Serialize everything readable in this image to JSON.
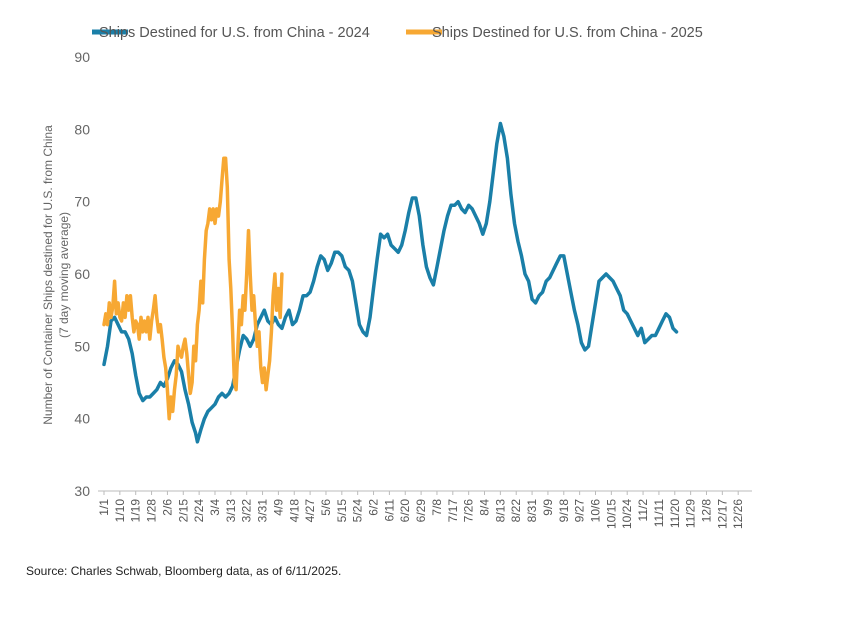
{
  "source_note": "Source: Charles Schwab, Bloomberg data, as of 6/11/2025.",
  "chart_data": {
    "type": "line",
    "title": "",
    "ylabel_line1": "Number of Container Ships destined for U.S. from China",
    "ylabel_line2": "(7 day moving average)",
    "xlabel": "",
    "ylim": [
      30,
      90
    ],
    "yticks": [
      30,
      40,
      50,
      60,
      70,
      80,
      90
    ],
    "grid": false,
    "legend_position": "top-left",
    "x_domain": [
      0,
      365
    ],
    "x_ticks": [
      {
        "label": "1/1",
        "day": 0
      },
      {
        "label": "1/10",
        "day": 9
      },
      {
        "label": "1/19",
        "day": 18
      },
      {
        "label": "1/28",
        "day": 27
      },
      {
        "label": "2/6",
        "day": 36
      },
      {
        "label": "2/15",
        "day": 45
      },
      {
        "label": "2/24",
        "day": 54
      },
      {
        "label": "3/4",
        "day": 63
      },
      {
        "label": "3/13",
        "day": 72
      },
      {
        "label": "3/22",
        "day": 81
      },
      {
        "label": "3/31",
        "day": 90
      },
      {
        "label": "4/9",
        "day": 99
      },
      {
        "label": "4/18",
        "day": 108
      },
      {
        "label": "4/27",
        "day": 117
      },
      {
        "label": "5/6",
        "day": 126
      },
      {
        "label": "5/15",
        "day": 135
      },
      {
        "label": "5/24",
        "day": 144
      },
      {
        "label": "6/2",
        "day": 153
      },
      {
        "label": "6/11",
        "day": 162
      },
      {
        "label": "6/20",
        "day": 171
      },
      {
        "label": "6/29",
        "day": 180
      },
      {
        "label": "7/8",
        "day": 189
      },
      {
        "label": "7/17",
        "day": 198
      },
      {
        "label": "7/26",
        "day": 207
      },
      {
        "label": "8/4",
        "day": 216
      },
      {
        "label": "8/13",
        "day": 225
      },
      {
        "label": "8/22",
        "day": 234
      },
      {
        "label": "8/31",
        "day": 243
      },
      {
        "label": "9/9",
        "day": 252
      },
      {
        "label": "9/18",
        "day": 261
      },
      {
        "label": "9/27",
        "day": 270
      },
      {
        "label": "10/6",
        "day": 279
      },
      {
        "label": "10/15",
        "day": 288
      },
      {
        "label": "10/24",
        "day": 297
      },
      {
        "label": "11/2",
        "day": 306
      },
      {
        "label": "11/11",
        "day": 315
      },
      {
        "label": "11/20",
        "day": 324
      },
      {
        "label": "11/29",
        "day": 333
      },
      {
        "label": "12/8",
        "day": 342
      },
      {
        "label": "12/17",
        "day": 351
      },
      {
        "label": "12/26",
        "day": 360
      }
    ],
    "series": [
      {
        "name": "Ships Destined for U.S. from China - 2024",
        "color": "#1a7fa8",
        "points": [
          [
            0,
            47.5
          ],
          [
            2,
            50
          ],
          [
            4,
            53.5
          ],
          [
            6,
            54
          ],
          [
            8,
            53
          ],
          [
            10,
            52
          ],
          [
            12,
            52
          ],
          [
            14,
            51
          ],
          [
            16,
            49
          ],
          [
            18,
            46
          ],
          [
            20,
            43.5
          ],
          [
            22,
            42.5
          ],
          [
            24,
            43
          ],
          [
            26,
            43
          ],
          [
            28,
            43.5
          ],
          [
            30,
            44
          ],
          [
            32,
            45
          ],
          [
            34,
            44.5
          ],
          [
            36,
            45.5
          ],
          [
            38,
            47
          ],
          [
            40,
            48
          ],
          [
            42,
            47.5
          ],
          [
            44,
            46.5
          ],
          [
            46,
            44
          ],
          [
            48,
            42
          ],
          [
            50,
            39.5
          ],
          [
            52,
            38
          ],
          [
            53,
            36.8
          ],
          [
            55,
            38.5
          ],
          [
            57,
            40
          ],
          [
            59,
            41
          ],
          [
            61,
            41.5
          ],
          [
            63,
            42
          ],
          [
            65,
            43
          ],
          [
            67,
            43.5
          ],
          [
            69,
            43
          ],
          [
            71,
            43.5
          ],
          [
            73,
            44.5
          ],
          [
            75,
            47
          ],
          [
            77,
            49.5
          ],
          [
            79,
            51.5
          ],
          [
            81,
            51
          ],
          [
            83,
            50
          ],
          [
            85,
            51
          ],
          [
            87,
            53
          ],
          [
            89,
            54
          ],
          [
            91,
            55
          ],
          [
            93,
            53.5
          ],
          [
            95,
            53
          ],
          [
            97,
            54
          ],
          [
            99,
            53
          ],
          [
            101,
            52.5
          ],
          [
            103,
            54
          ],
          [
            105,
            55
          ],
          [
            107,
            53
          ],
          [
            109,
            53.5
          ],
          [
            111,
            55
          ],
          [
            113,
            57
          ],
          [
            115,
            57
          ],
          [
            117,
            57.5
          ],
          [
            119,
            59
          ],
          [
            121,
            61
          ],
          [
            123,
            62.5
          ],
          [
            125,
            62
          ],
          [
            127,
            60.5
          ],
          [
            129,
            61.5
          ],
          [
            131,
            63
          ],
          [
            133,
            63
          ],
          [
            135,
            62.5
          ],
          [
            137,
            61
          ],
          [
            139,
            60.5
          ],
          [
            141,
            59
          ],
          [
            143,
            56
          ],
          [
            145,
            53
          ],
          [
            147,
            52
          ],
          [
            149,
            51.5
          ],
          [
            151,
            54
          ],
          [
            153,
            58
          ],
          [
            155,
            62
          ],
          [
            157,
            65.5
          ],
          [
            159,
            65
          ],
          [
            161,
            65.5
          ],
          [
            163,
            64
          ],
          [
            165,
            63.5
          ],
          [
            167,
            63
          ],
          [
            169,
            64
          ],
          [
            171,
            66
          ],
          [
            173,
            68.5
          ],
          [
            175,
            70.5
          ],
          [
            177,
            70.5
          ],
          [
            179,
            68
          ],
          [
            181,
            64
          ],
          [
            183,
            61
          ],
          [
            185,
            59.5
          ],
          [
            187,
            58.5
          ],
          [
            189,
            61
          ],
          [
            191,
            63.5
          ],
          [
            193,
            66
          ],
          [
            195,
            68
          ],
          [
            197,
            69.5
          ],
          [
            199,
            69.5
          ],
          [
            201,
            70
          ],
          [
            203,
            69
          ],
          [
            205,
            68.5
          ],
          [
            207,
            69.5
          ],
          [
            209,
            69
          ],
          [
            211,
            68
          ],
          [
            213,
            67
          ],
          [
            215,
            65.5
          ],
          [
            217,
            67
          ],
          [
            219,
            70
          ],
          [
            221,
            74
          ],
          [
            223,
            78
          ],
          [
            225,
            80.8
          ],
          [
            227,
            79
          ],
          [
            229,
            76
          ],
          [
            231,
            71
          ],
          [
            233,
            67
          ],
          [
            235,
            64.5
          ],
          [
            237,
            62.5
          ],
          [
            239,
            60
          ],
          [
            241,
            59
          ],
          [
            243,
            56.5
          ],
          [
            245,
            56
          ],
          [
            247,
            57
          ],
          [
            249,
            57.5
          ],
          [
            251,
            59
          ],
          [
            253,
            59.5
          ],
          [
            255,
            60.5
          ],
          [
            257,
            61.5
          ],
          [
            259,
            62.5
          ],
          [
            261,
            62.5
          ],
          [
            263,
            60
          ],
          [
            265,
            57.5
          ],
          [
            267,
            55
          ],
          [
            269,
            53
          ],
          [
            271,
            50.5
          ],
          [
            273,
            49.5
          ],
          [
            275,
            50
          ],
          [
            277,
            53
          ],
          [
            279,
            56
          ],
          [
            281,
            59
          ],
          [
            283,
            59.5
          ],
          [
            285,
            60
          ],
          [
            287,
            59.5
          ],
          [
            289,
            59
          ],
          [
            291,
            58
          ],
          [
            293,
            57
          ],
          [
            295,
            55
          ],
          [
            297,
            54.5
          ],
          [
            299,
            53.5
          ],
          [
            301,
            52.5
          ],
          [
            303,
            51.5
          ],
          [
            305,
            52.5
          ],
          [
            307,
            50.5
          ],
          [
            309,
            51
          ],
          [
            311,
            51.5
          ],
          [
            313,
            51.5
          ],
          [
            315,
            52.5
          ],
          [
            317,
            53.5
          ],
          [
            319,
            54.5
          ],
          [
            321,
            54
          ],
          [
            323,
            52.5
          ],
          [
            325,
            52
          ]
        ]
      },
      {
        "name": "Ships Destined for U.S. from China - 2025",
        "color": "#f7a833",
        "points": [
          [
            0,
            53
          ],
          [
            1,
            54.5
          ],
          [
            2,
            53
          ],
          [
            3,
            56
          ],
          [
            4,
            54
          ],
          [
            5,
            55.5
          ],
          [
            6,
            59
          ],
          [
            7,
            54.5
          ],
          [
            8,
            56
          ],
          [
            9,
            54
          ],
          [
            10,
            53.5
          ],
          [
            11,
            56
          ],
          [
            12,
            54
          ],
          [
            13,
            57
          ],
          [
            14,
            55
          ],
          [
            15,
            57
          ],
          [
            16,
            54
          ],
          [
            17,
            52
          ],
          [
            18,
            53.5
          ],
          [
            19,
            53
          ],
          [
            20,
            51
          ],
          [
            21,
            54
          ],
          [
            22,
            52
          ],
          [
            23,
            53.5
          ],
          [
            24,
            52
          ],
          [
            25,
            54
          ],
          [
            26,
            51
          ],
          [
            27,
            53.5
          ],
          [
            28,
            55
          ],
          [
            29,
            57
          ],
          [
            30,
            54
          ],
          [
            31,
            52
          ],
          [
            32,
            53
          ],
          [
            33,
            51
          ],
          [
            34,
            48.5
          ],
          [
            35,
            47
          ],
          [
            36,
            44
          ],
          [
            37,
            40
          ],
          [
            38,
            43
          ],
          [
            39,
            41
          ],
          [
            40,
            44
          ],
          [
            41,
            46
          ],
          [
            42,
            50
          ],
          [
            43,
            49
          ],
          [
            44,
            48.5
          ],
          [
            45,
            50
          ],
          [
            46,
            51
          ],
          [
            47,
            49
          ],
          [
            48,
            46
          ],
          [
            49,
            43.5
          ],
          [
            50,
            45
          ],
          [
            51,
            50
          ],
          [
            52,
            48
          ],
          [
            53,
            53
          ],
          [
            54,
            55
          ],
          [
            55,
            59
          ],
          [
            56,
            56
          ],
          [
            57,
            62
          ],
          [
            58,
            66
          ],
          [
            59,
            67
          ],
          [
            60,
            69
          ],
          [
            61,
            67.5
          ],
          [
            62,
            69
          ],
          [
            63,
            67
          ],
          [
            64,
            69
          ],
          [
            65,
            68
          ],
          [
            66,
            70
          ],
          [
            67,
            73
          ],
          [
            68,
            76
          ],
          [
            69,
            76
          ],
          [
            70,
            72
          ],
          [
            71,
            62
          ],
          [
            72,
            58
          ],
          [
            73,
            52
          ],
          [
            74,
            45
          ],
          [
            75,
            44
          ],
          [
            76,
            50
          ],
          [
            77,
            55
          ],
          [
            78,
            53
          ],
          [
            79,
            57
          ],
          [
            80,
            55
          ],
          [
            81,
            60
          ],
          [
            82,
            66
          ],
          [
            83,
            60
          ],
          [
            84,
            55
          ],
          [
            85,
            57
          ],
          [
            86,
            53
          ],
          [
            87,
            50
          ],
          [
            88,
            52
          ],
          [
            89,
            47
          ],
          [
            90,
            45
          ],
          [
            91,
            47
          ],
          [
            92,
            44
          ],
          [
            93,
            46
          ],
          [
            94,
            48
          ],
          [
            95,
            52
          ],
          [
            96,
            57
          ],
          [
            97,
            60
          ],
          [
            98,
            55
          ],
          [
            99,
            58
          ],
          [
            100,
            54
          ],
          [
            101,
            60
          ]
        ]
      }
    ]
  }
}
